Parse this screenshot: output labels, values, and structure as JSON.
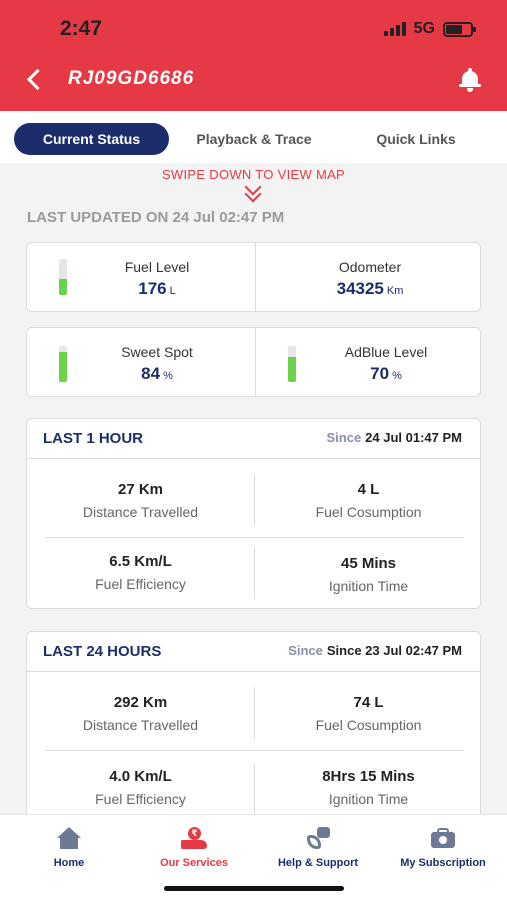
{
  "status_bar": {
    "time": "2:47",
    "network": "5G"
  },
  "header": {
    "vehicle_number": "RJ09GD6686"
  },
  "tabs": [
    {
      "label": "Current Status",
      "active": true
    },
    {
      "label": "Playback & Trace",
      "active": false
    },
    {
      "label": "Quick Links",
      "active": false
    }
  ],
  "swipe_hint": "SWIPE DOWN TO VIEW MAP",
  "last_updated": "LAST UPDATED ON 24 Jul 02:47 PM",
  "metrics": [
    {
      "label": "Fuel Level",
      "value": "176",
      "unit": "L",
      "gauge_level": 0.45
    },
    {
      "label": "Odometer",
      "value": "34325",
      "unit": "Km"
    },
    {
      "label": "Sweet Spot",
      "value": "84",
      "unit": "%",
      "gauge_level": 0.84
    },
    {
      "label": "AdBlue Level",
      "value": "70",
      "unit": "%",
      "gauge_level": 0.7
    }
  ],
  "last_1_hour": {
    "title": "LAST 1 HOUR",
    "since_label": "Since",
    "since_value": "24 Jul 01:47 PM",
    "stats": [
      {
        "value": "27 Km",
        "label": "Distance Travelled"
      },
      {
        "value": "4 L",
        "label": "Fuel Cosumption"
      },
      {
        "value": "6.5 Km/L",
        "label": "Fuel Efficiency"
      },
      {
        "value": "45 Mins",
        "label": "Ignition Time"
      }
    ]
  },
  "last_24_hours": {
    "title": "LAST 24 HOURS",
    "since_label": "Since",
    "since_value": "Since 23 Jul 02:47 PM",
    "stats": [
      {
        "value": "292 Km",
        "label": "Distance Travelled"
      },
      {
        "value": "74 L",
        "label": "Fuel Cosumption"
      },
      {
        "value": "4.0 Km/L",
        "label": "Fuel Efficiency"
      },
      {
        "value": "8Hrs 15 Mins",
        "label": "Ignition Time"
      }
    ]
  },
  "bottom_nav": [
    {
      "label": "Home",
      "icon": "home-icon",
      "active": false
    },
    {
      "label": "Our Services",
      "icon": "services-icon",
      "active": true
    },
    {
      "label": "Help & Support",
      "icon": "support-icon",
      "active": false
    },
    {
      "label": "My Subscription",
      "icon": "subscription-icon",
      "active": false
    }
  ],
  "colors": {
    "brand_red": "#e63946",
    "navy": "#1c2d6b",
    "gauge_green": "#6bd34a"
  }
}
